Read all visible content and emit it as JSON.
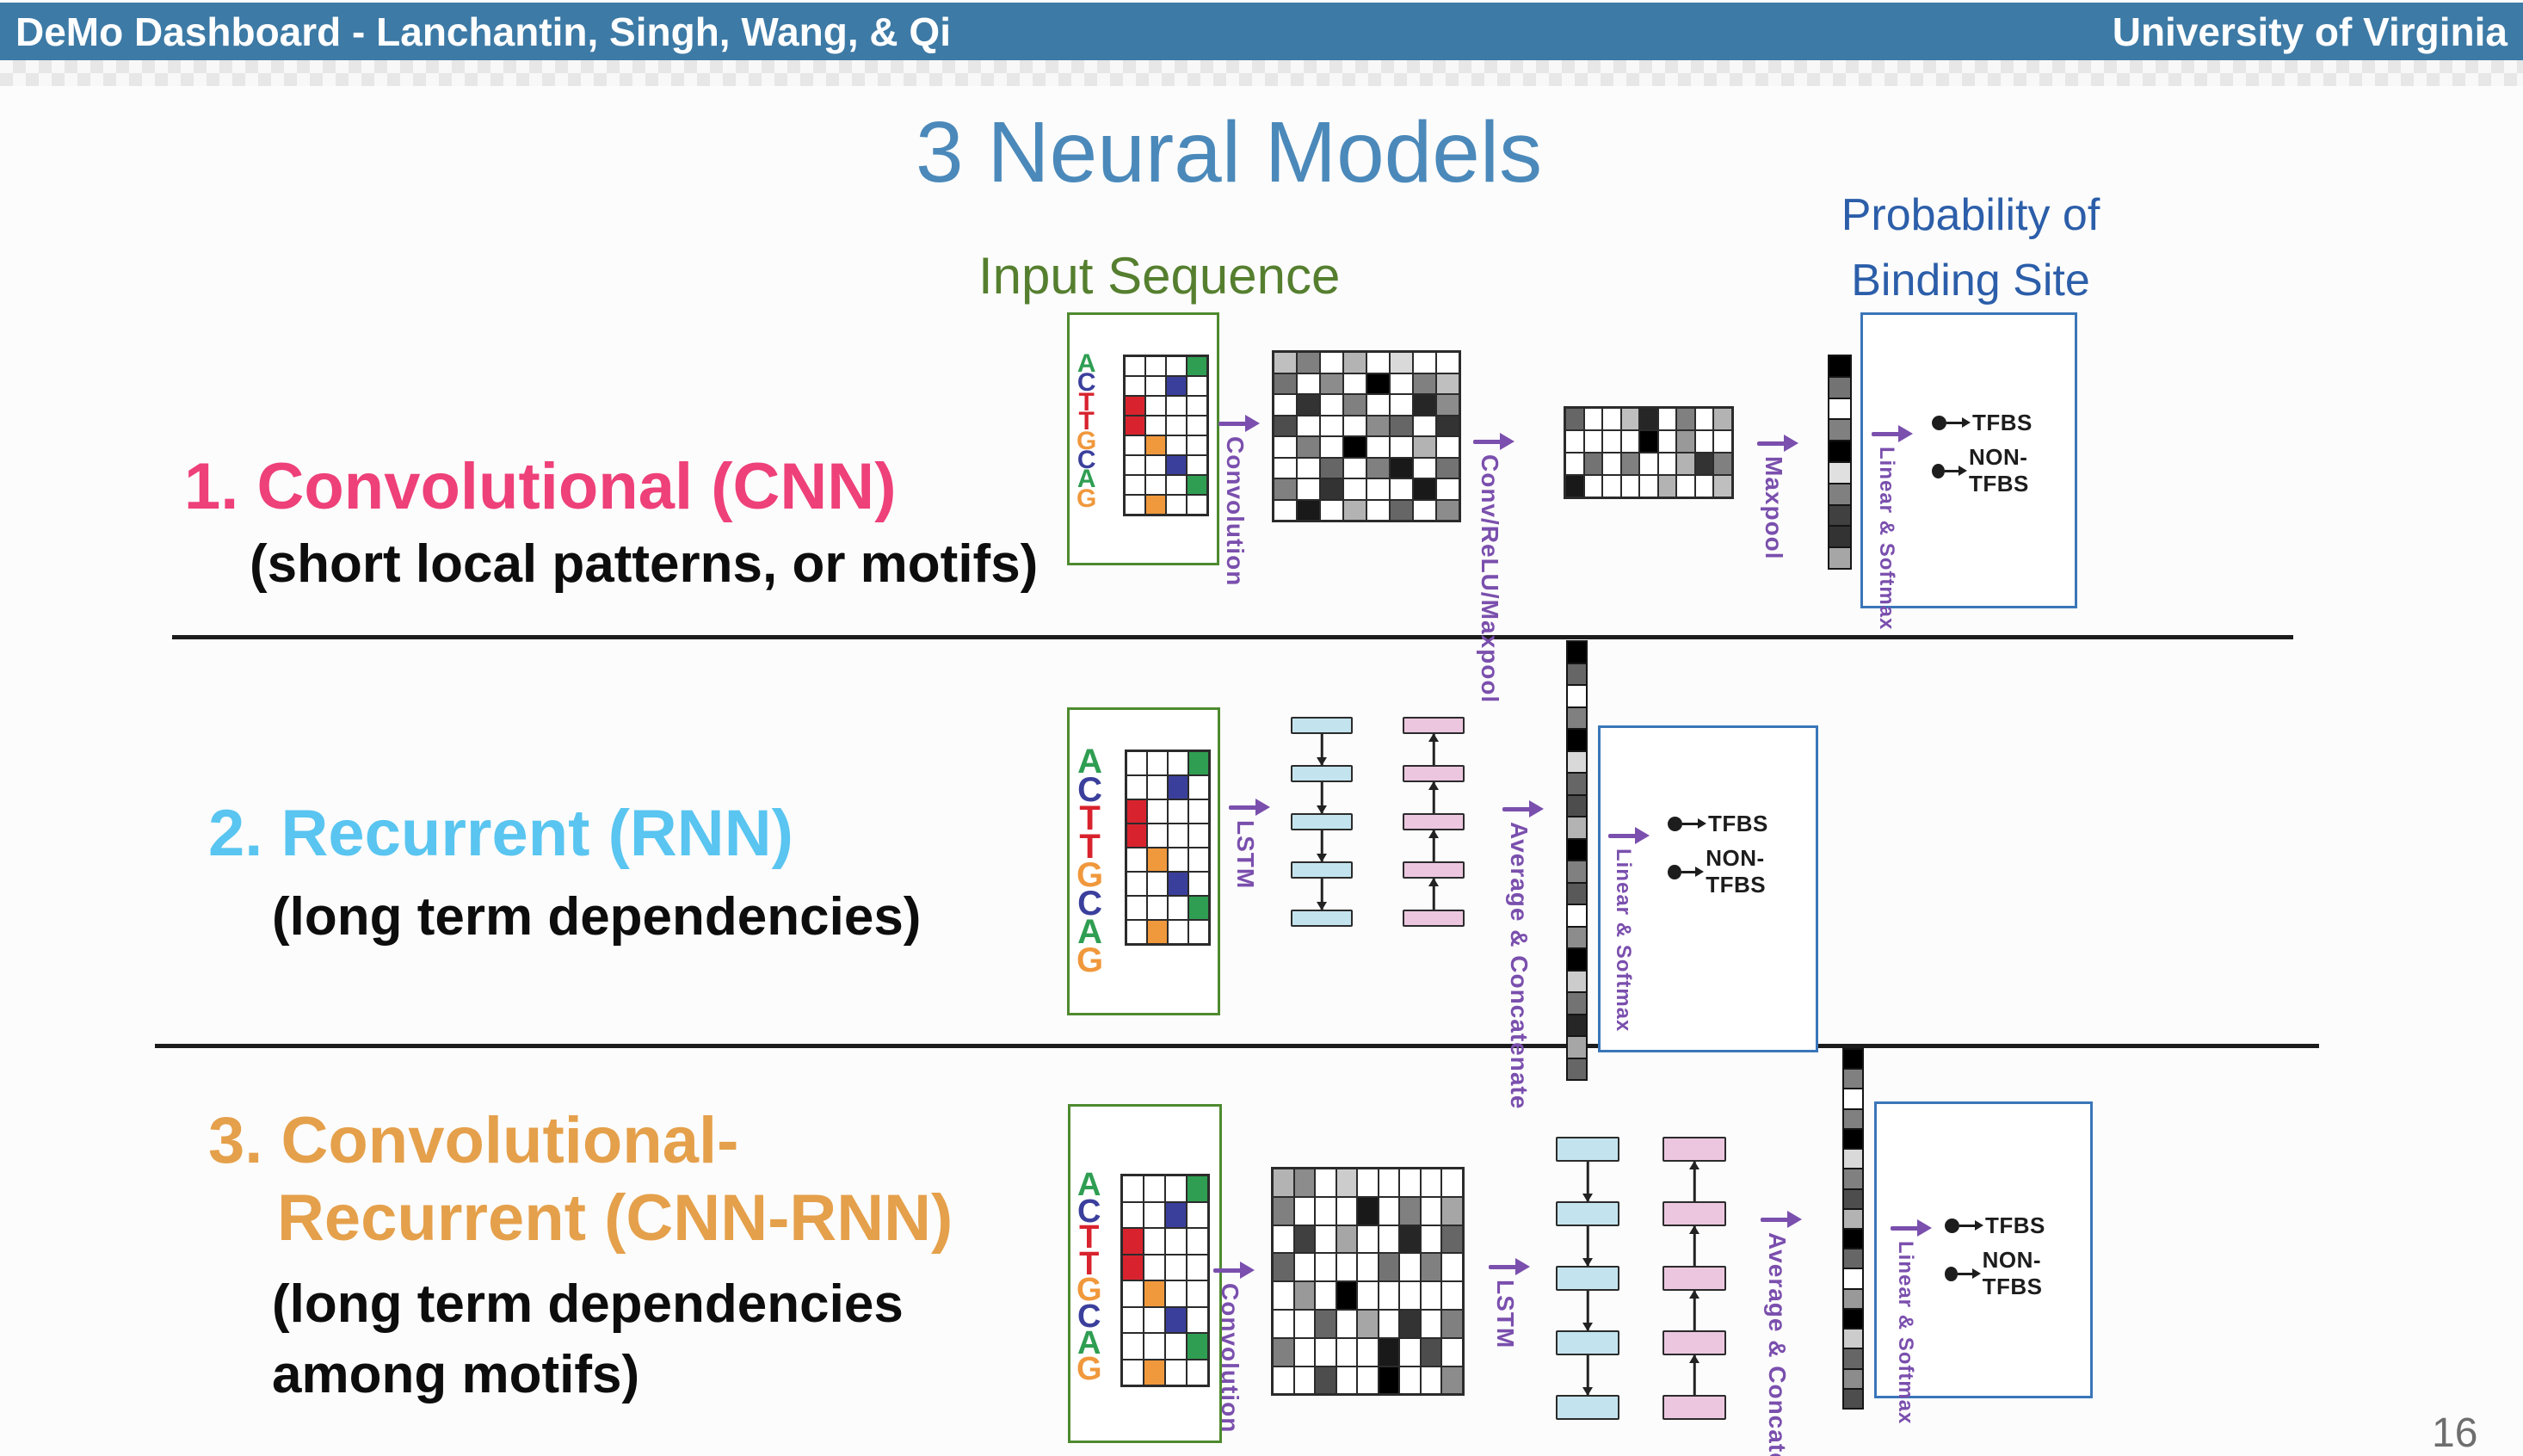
{
  "header": {
    "title": "DeMo Dashboard - Lanchantin, Singh, Wang, & Qi",
    "right": "University of Virginia"
  },
  "slide": {
    "title": "3 Neural Models",
    "input_label": "Input Sequence",
    "output_label": "Probability of Binding Site",
    "page_number": "16"
  },
  "models": [
    {
      "title": "1. Convolutional (CNN)",
      "subtitle": "(short local patterns, or motifs)"
    },
    {
      "title": "2. Recurrent (RNN)",
      "subtitle": "(long term dependencies)"
    },
    {
      "title_line1": "3. Convolutional-",
      "title_line2": "Recurrent (CNN-RNN)",
      "subtitle_line1": "(long term dependencies",
      "subtitle_line2": "among motifs)"
    }
  ],
  "labels": {
    "convolution": "Convolution",
    "conv_relu_maxpool": "Conv/ReLU/Maxpool",
    "maxpool": "Maxpool",
    "lstm": "LSTM",
    "avg_concat": "Average & Concatenate",
    "linear_softmax": "Linear & Softmax",
    "tfbs": "TFBS",
    "non_tfbs": "NON-TFBS"
  },
  "colors": {
    "header_bar": "#3d7aa6",
    "title_blue": "#4b89ba",
    "input_green": "#557f2f",
    "prob_blue": "#2c5ea9",
    "model1_pink": "#ee4079",
    "model2_blue": "#59c5f0",
    "model3_orange": "#e5a04b",
    "purple": "#7a4fad",
    "green_box_border": "#4e8a2f",
    "blue_box_border": "#3a76b8",
    "onehot": {
      "g": "#2f9e52",
      "b": "#3b3f9c",
      "r": "#d8232e",
      "o": "#f0983c"
    },
    "chain_blue_fill": "#c3e4ee",
    "chain_pink_fill": "#ecc6df"
  },
  "sequence": {
    "letters": [
      [
        "A",
        "#2f9e52"
      ],
      [
        "C",
        "#3b3f9c"
      ],
      [
        "T",
        "#d8232e"
      ],
      [
        "T",
        "#d8232e"
      ],
      [
        "G",
        "#f0983c"
      ],
      [
        "C",
        "#3b3f9c"
      ],
      [
        "A",
        "#2f9e52"
      ],
      [
        "G",
        "#f0983c"
      ]
    ],
    "onehot": [
      [
        "",
        "",
        "",
        "g"
      ],
      [
        "",
        "",
        "b",
        ""
      ],
      [
        "r",
        "",
        "",
        ""
      ],
      [
        "r",
        "",
        "",
        ""
      ],
      [
        "",
        "o",
        "",
        ""
      ],
      [
        "",
        "",
        "b",
        ""
      ],
      [
        "",
        "",
        "",
        "g"
      ],
      [
        "",
        "o",
        "",
        ""
      ]
    ]
  },
  "grids": {
    "cnn_conv": [
      [
        0.25,
        0.5,
        0,
        0.3,
        0,
        0.15,
        0,
        0
      ],
      [
        0.55,
        0,
        0.45,
        0,
        1,
        0,
        0.5,
        0.25
      ],
      [
        0,
        0.8,
        0,
        0.5,
        0,
        0,
        0.85,
        0.45
      ],
      [
        0.7,
        0,
        0,
        0,
        0.45,
        0.6,
        0,
        0.8
      ],
      [
        0,
        0.5,
        0,
        1,
        0,
        0,
        0.3,
        0
      ],
      [
        0,
        0,
        0.6,
        0,
        0.5,
        0.9,
        0,
        0.55
      ],
      [
        0.5,
        0,
        0.8,
        0,
        0,
        0,
        0.9,
        0
      ],
      [
        0,
        0.9,
        0,
        0.3,
        0,
        0.6,
        0,
        0.45
      ]
    ],
    "cnn_pool": [
      [
        0.6,
        0,
        0,
        0.25,
        0.85,
        0,
        0.5,
        0,
        0.3
      ],
      [
        0,
        0,
        0,
        0,
        1,
        0,
        0.4,
        0,
        0
      ],
      [
        0,
        0.55,
        0,
        0.5,
        0,
        0,
        0.3,
        0.8,
        0.5
      ],
      [
        0.9,
        0,
        0,
        0,
        0,
        0.3,
        0,
        0,
        0.25
      ]
    ],
    "cnnrnn_conv": [
      [
        0.3,
        0.45,
        0,
        0.2,
        0,
        0,
        0,
        0,
        0
      ],
      [
        0.5,
        0,
        0,
        0,
        0.9,
        0,
        0.5,
        0,
        0.35
      ],
      [
        0,
        0.75,
        0,
        0.35,
        0,
        0,
        0.85,
        0,
        0.6
      ],
      [
        0.6,
        0,
        0,
        0,
        0,
        0.55,
        0,
        0.5,
        0
      ],
      [
        0,
        0.4,
        0,
        1,
        0,
        0,
        0,
        0,
        0
      ],
      [
        0,
        0,
        0.6,
        0,
        0.35,
        0,
        0.8,
        0,
        0.5
      ],
      [
        0.5,
        0,
        0,
        0,
        0,
        0.9,
        0,
        0.7,
        0
      ],
      [
        0,
        0,
        0.7,
        0,
        0,
        1,
        0,
        0,
        0.45
      ]
    ]
  },
  "vectors": {
    "cnn": [
      1,
      0.55,
      0,
      0.5,
      1,
      0.12,
      0.5,
      0.75,
      0.8,
      0.35
    ],
    "rnn": [
      1,
      0.6,
      0,
      0.5,
      1,
      0.15,
      0.6,
      0.7,
      0.3,
      1,
      0.5,
      0.65,
      0,
      0.45,
      1,
      0.2,
      0.55,
      0.85,
      0.35,
      0.6
    ],
    "cnnrnn": [
      1,
      0.5,
      0,
      0.5,
      1,
      0.15,
      0.5,
      0.7,
      0.3,
      1,
      0.6,
      0,
      0.4,
      1,
      0.2,
      0.6,
      0.45,
      0.7
    ]
  },
  "chains": {
    "rnn_forward": {
      "count": 5,
      "dir": "down",
      "fill": "#c3e4ee"
    },
    "rnn_backward": {
      "count": 5,
      "dir": "up",
      "fill": "#ecc6df"
    },
    "crnn_forward": {
      "count": 5,
      "dir": "down",
      "fill": "#c3e4ee"
    },
    "crnn_backward": {
      "count": 5,
      "dir": "up",
      "fill": "#ecc6df"
    }
  }
}
